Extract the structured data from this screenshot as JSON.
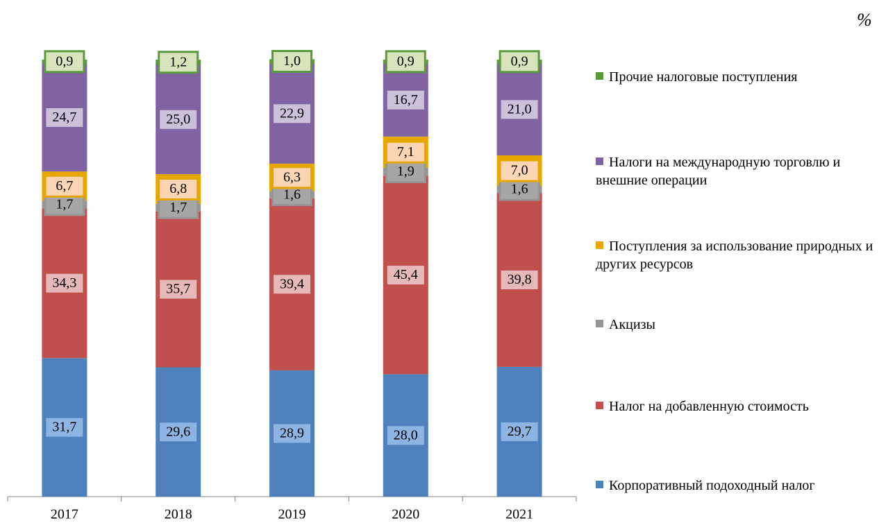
{
  "chart_data": {
    "type": "stacked_bar",
    "unit_label": "%",
    "categories": [
      "2017",
      "2018",
      "2019",
      "2020",
      "2021"
    ],
    "ylim": [
      0,
      100
    ],
    "series": [
      {
        "name": "Корпоративный подоходный налог",
        "color": "#4f81bd",
        "label_bg": "#8db4e2",
        "values": [
          31.7,
          29.6,
          28.9,
          28.0,
          29.7
        ],
        "value_labels": [
          "31,7",
          "29,6",
          "28,9",
          "28,0",
          "29,7"
        ]
      },
      {
        "name": "Налог на добавленную стоимость",
        "color": "#c0504d",
        "label_bg": "#e6b9b8",
        "values": [
          34.3,
          35.7,
          39.4,
          45.4,
          39.8
        ],
        "value_labels": [
          "34,3",
          "35,7",
          "39,4",
          "45,4",
          "39,8"
        ]
      },
      {
        "name": "Акцизы",
        "color": "#969696",
        "label_bg": "#a6a6a6",
        "values": [
          1.7,
          1.7,
          1.6,
          1.9,
          1.6
        ],
        "value_labels": [
          "1,7",
          "1,7",
          "1,6",
          "1,9",
          "1,6"
        ]
      },
      {
        "name": "Поступления за использование природных и других ресурсов",
        "color": "#e6a800",
        "label_bg": "#fcd5b4",
        "values": [
          6.7,
          6.8,
          6.3,
          7.1,
          7.0
        ],
        "value_labels": [
          "6,7",
          "6,8",
          "6,3",
          "7,1",
          "7,0"
        ]
      },
      {
        "name": "Налоги на международную торговлю и внешние операции",
        "color": "#8064a2",
        "label_bg": "#ccc0da",
        "values": [
          24.7,
          25.0,
          22.9,
          16.7,
          21.0
        ],
        "value_labels": [
          "24,7",
          "25,0",
          "22,9",
          "16,7",
          "21,0"
        ]
      },
      {
        "name": "Прочие налоговые поступления",
        "color": "#5a9a3c",
        "label_bg": "#d7e4bc",
        "values": [
          0.9,
          1.2,
          1.0,
          0.9,
          0.9
        ],
        "value_labels": [
          "0,9",
          "1,2",
          "1,0",
          "0,9",
          "0,9"
        ]
      }
    ]
  }
}
